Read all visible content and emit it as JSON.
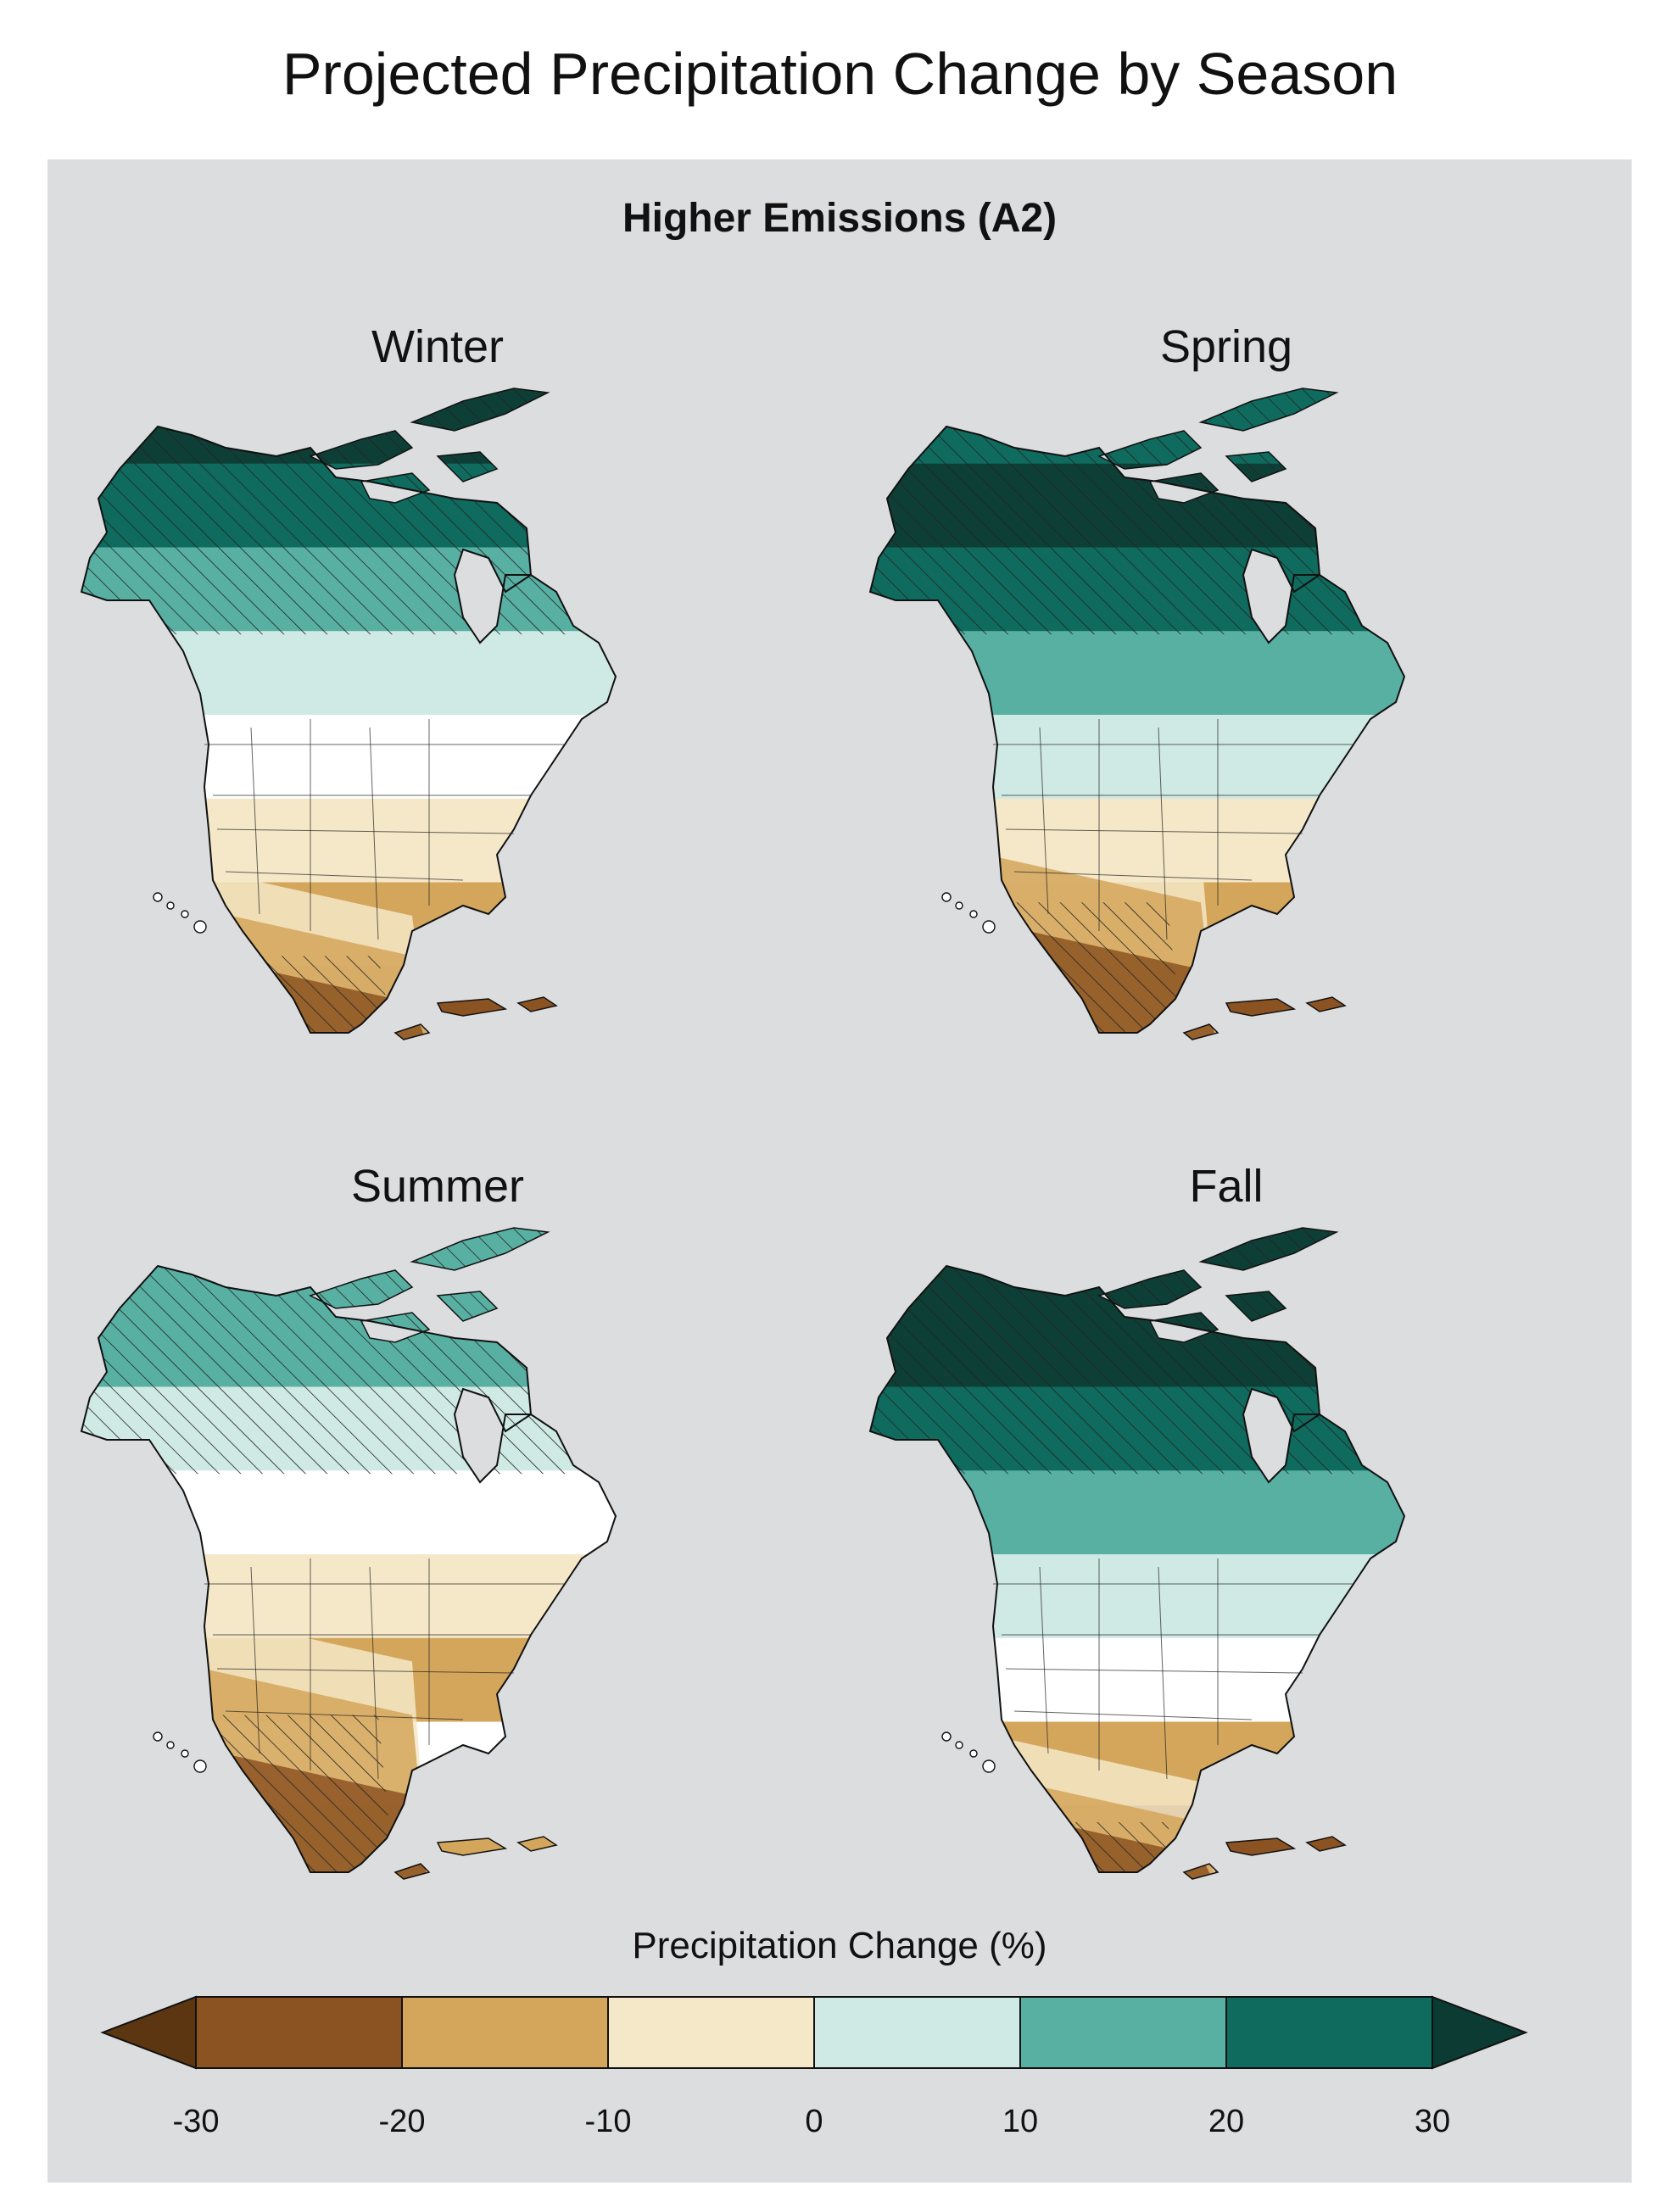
{
  "title": "Projected Precipitation Change by Season",
  "subtitle": "Higher Emissions (A2)",
  "seasons": [
    {
      "label": "Winter",
      "zones": [
        "#0e3f36",
        "#0f6b5e",
        "#58b0a3",
        "#cfe9e4",
        "#ffffff",
        "#f5e8c8",
        "#d4a65b",
        "#8c5322"
      ],
      "dry_bands": [
        0.8,
        0.86,
        0.93
      ],
      "hatch_wet": true,
      "hatch_dry": true
    },
    {
      "label": "Spring",
      "zones": [
        "#0f6b5e",
        "#0e3f36",
        "#0f6b5e",
        "#58b0a3",
        "#cfe9e4",
        "#f5e8c8",
        "#d4a65b",
        "#8c5322"
      ],
      "dry_bands": [
        0.7,
        0.78,
        0.88
      ],
      "hatch_wet": true,
      "hatch_dry": true
    },
    {
      "label": "Summer",
      "zones": [
        "#58b0a3",
        "#58b0a3",
        "#cfe9e4",
        "#ffffff",
        "#f5e8c8",
        "#d4a65b",
        "#ffffff",
        "#d4a65b"
      ],
      "dry_bands": [
        0.66,
        0.74,
        0.86
      ],
      "hatch_wet": true,
      "hatch_dry": true
    },
    {
      "label": "Fall",
      "zones": [
        "#0e3f36",
        "#0e3f36",
        "#0f6b5e",
        "#58b0a3",
        "#cfe9e4",
        "#ffffff",
        "#d4a65b",
        "#8c5322"
      ],
      "dry_bands": [
        0.84,
        0.9,
        0.95
      ],
      "hatch_wet": true,
      "hatch_dry": true
    }
  ],
  "legend": {
    "title": "Precipitation Change (%)",
    "ticks": [
      "-30",
      "-20",
      "-10",
      "0",
      "10",
      "20",
      "30"
    ],
    "colors": [
      "#5c3511",
      "#8c5322",
      "#d4a65b",
      "#f5e8c8",
      "#cfe9e4",
      "#58b0a3",
      "#0f6b5e",
      "#0b3b32"
    ]
  }
}
